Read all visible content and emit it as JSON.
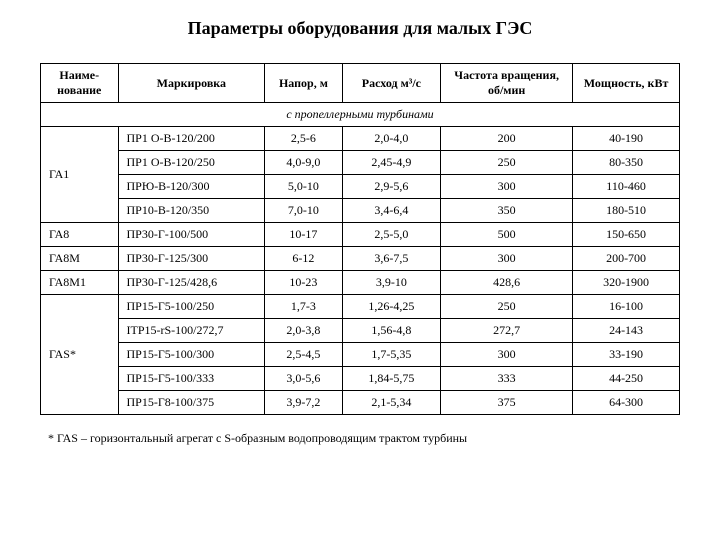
{
  "title": "Параметры оборудования для малых ГЭС",
  "columns": [
    "Наиме-\nнование",
    "Маркировка",
    "Напор, м",
    "Расход м³/с",
    "Частота вращения, об/мин",
    "Мощность, кВт"
  ],
  "subheader": "с пропеллерными турбинами",
  "groups": [
    {
      "name": "ГА1",
      "rows": [
        {
          "m": "ПР1 О-В-120/200",
          "h": "2,5-6",
          "q": "2,0-4,0",
          "n": "200",
          "p": "40-190"
        },
        {
          "m": "ПР1 О-В-120/250",
          "h": "4,0-9,0",
          "q": "2,45-4,9",
          "n": "250",
          "p": "80-350"
        },
        {
          "m": "ПРЮ-В-120/300",
          "h": "5,0-10",
          "q": "2,9-5,6",
          "n": "300",
          "p": "110-460"
        },
        {
          "m": "ПР10-В-120/350",
          "h": "7,0-10",
          "q": "3,4-6,4",
          "n": "350",
          "p": "180-510"
        }
      ]
    },
    {
      "name": "ГА8",
      "rows": [
        {
          "m": "ПР30-Г-100/500",
          "h": "10-17",
          "q": "2,5-5,0",
          "n": "500",
          "p": "150-650"
        }
      ]
    },
    {
      "name": "ГА8М",
      "rows": [
        {
          "m": "ПР30-Г-125/300",
          "h": "6-12",
          "q": "3,6-7,5",
          "n": "300",
          "p": "200-700"
        }
      ]
    },
    {
      "name": "ГА8М1",
      "rows": [
        {
          "m": "ПР30-Г-125/428,6",
          "h": "10-23",
          "q": "3,9-10",
          "n": "428,6",
          "p": "320-1900"
        }
      ]
    },
    {
      "name": "ГАS*",
      "rows": [
        {
          "m": "ПР15-Г5-100/250",
          "h": "1,7-3",
          "q": "1,26-4,25",
          "n": "250",
          "p": "16-100"
        },
        {
          "m": "ITP15-rS-100/272,7",
          "h": "2,0-3,8",
          "q": "1,56-4,8",
          "n": "272,7",
          "p": "24-143"
        },
        {
          "m": "ПР15-Г5-100/300",
          "h": "2,5-4,5",
          "q": "1,7-5,35",
          "n": "300",
          "p": "33-190"
        },
        {
          "m": "ПР15-Г5-100/333",
          "h": "3,0-5,6",
          "q": "1,84-5,75",
          "n": "333",
          "p": "44-250"
        },
        {
          "m": "ПР15-Г8-100/375",
          "h": "3,9-7,2",
          "q": "2,1-5,34",
          "n": "375",
          "p": "64-300"
        }
      ]
    }
  ],
  "footnote": "* ГАS – горизонтальный агрегат с S-образным водопроводящим трактом турбины",
  "colwidths": [
    "74px",
    "140px",
    "74px",
    "94px",
    "126px",
    "102px"
  ]
}
